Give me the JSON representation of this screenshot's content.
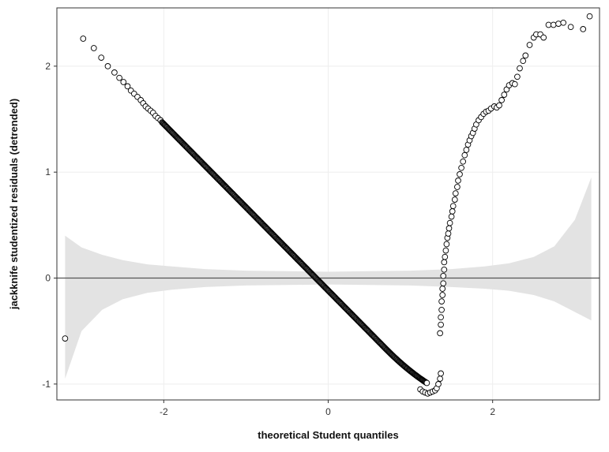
{
  "chart_data": {
    "type": "scatter",
    "title": "",
    "xlabel": "theoretical Student quantiles",
    "ylabel": "jackknife studentized residuals (detrended)",
    "xlim": [
      -3.3,
      3.3
    ],
    "ylim": [
      -1.15,
      2.55
    ],
    "x_ticks": [
      -2,
      0,
      2
    ],
    "y_ticks": [
      -1,
      0,
      1,
      2
    ],
    "x_tick_labels": [
      "-2",
      "0",
      "2"
    ],
    "y_tick_labels": [
      "-1",
      "0",
      "1",
      "2"
    ],
    "grid": true,
    "reference_line_y": 0,
    "colors": {
      "point_stroke": "#000000",
      "point_fill": "#ffffff",
      "band_fill": "#e3e3e3",
      "grid": "#eeeeee",
      "reference_line": "#555555"
    },
    "confidence_band": {
      "x": [
        -3.2,
        -3.0,
        -2.75,
        -2.5,
        -2.2,
        -1.9,
        -1.5,
        -1.0,
        -0.5,
        0.0,
        0.5,
        1.0,
        1.5,
        1.9,
        2.2,
        2.5,
        2.75,
        3.0,
        3.2
      ],
      "upper": [
        0.4,
        0.29,
        0.22,
        0.17,
        0.13,
        0.11,
        0.085,
        0.07,
        0.065,
        0.06,
        0.065,
        0.07,
        0.085,
        0.11,
        0.14,
        0.2,
        0.3,
        0.55,
        0.95
      ],
      "lower": [
        -0.95,
        -0.5,
        -0.3,
        -0.2,
        -0.14,
        -0.11,
        -0.085,
        -0.07,
        -0.065,
        -0.06,
        -0.065,
        -0.07,
        -0.085,
        -0.1,
        -0.12,
        -0.16,
        -0.22,
        -0.32,
        -0.4
      ]
    },
    "series": [
      {
        "outliers": [
          [
            -3.2,
            -0.57
          ],
          [
            -2.98,
            2.26
          ],
          [
            -2.85,
            2.17
          ],
          [
            -2.76,
            2.08
          ],
          [
            -2.68,
            2.0
          ],
          [
            -2.6,
            1.94
          ],
          [
            -2.54,
            1.89
          ],
          [
            -2.49,
            1.85
          ],
          [
            -2.44,
            1.81
          ],
          [
            -2.4,
            1.77
          ],
          [
            -2.36,
            1.74
          ],
          [
            -2.32,
            1.71
          ],
          [
            -2.28,
            1.68
          ],
          [
            -2.25,
            1.65
          ],
          [
            -2.22,
            1.62
          ],
          [
            -2.19,
            1.6
          ],
          [
            -2.16,
            1.58
          ],
          [
            -2.13,
            1.56
          ],
          [
            -2.1,
            1.53
          ],
          [
            -2.07,
            1.51
          ],
          [
            -2.04,
            1.49
          ]
        ],
        "main_trend": {
          "x_from": -2.02,
          "x_to": 1.2,
          "y_at_x_from": 1.47,
          "y_at_x_to": -1.06,
          "curve_start_x": 0.7
        },
        "lower_tail_points": [
          [
            1.12,
            -1.05
          ],
          [
            1.15,
            -1.07
          ],
          [
            1.18,
            -1.08
          ],
          [
            1.21,
            -1.09
          ],
          [
            1.24,
            -1.08
          ],
          [
            1.27,
            -1.07
          ],
          [
            1.3,
            -1.06
          ],
          [
            1.32,
            -1.04
          ],
          [
            1.34,
            -1.0
          ],
          [
            1.36,
            -0.95
          ],
          [
            1.37,
            -0.9
          ]
        ],
        "upper_tail_points": [
          [
            1.36,
            -0.52
          ],
          [
            1.37,
            -0.44
          ],
          [
            1.37,
            -0.37
          ],
          [
            1.38,
            -0.3
          ],
          [
            1.38,
            -0.22
          ],
          [
            1.39,
            -0.16
          ],
          [
            1.39,
            -0.1
          ],
          [
            1.4,
            -0.05
          ],
          [
            1.4,
            0.02
          ],
          [
            1.41,
            0.08
          ],
          [
            1.41,
            0.15
          ],
          [
            1.42,
            0.2
          ],
          [
            1.43,
            0.26
          ],
          [
            1.44,
            0.32
          ],
          [
            1.45,
            0.38
          ],
          [
            1.46,
            0.42
          ],
          [
            1.47,
            0.47
          ],
          [
            1.48,
            0.52
          ],
          [
            1.5,
            0.58
          ],
          [
            1.51,
            0.63
          ],
          [
            1.52,
            0.68
          ],
          [
            1.54,
            0.74
          ],
          [
            1.55,
            0.8
          ],
          [
            1.57,
            0.86
          ],
          [
            1.58,
            0.92
          ],
          [
            1.6,
            0.98
          ],
          [
            1.62,
            1.04
          ],
          [
            1.64,
            1.1
          ],
          [
            1.66,
            1.16
          ],
          [
            1.68,
            1.21
          ],
          [
            1.7,
            1.26
          ],
          [
            1.72,
            1.3
          ],
          [
            1.74,
            1.34
          ],
          [
            1.76,
            1.37
          ],
          [
            1.78,
            1.41
          ],
          [
            1.8,
            1.45
          ],
          [
            1.83,
            1.49
          ],
          [
            1.86,
            1.52
          ],
          [
            1.89,
            1.55
          ],
          [
            1.92,
            1.57
          ],
          [
            1.95,
            1.58
          ],
          [
            1.98,
            1.6
          ],
          [
            2.02,
            1.62
          ],
          [
            2.05,
            1.61
          ],
          [
            2.08,
            1.63
          ],
          [
            2.11,
            1.68
          ],
          [
            2.14,
            1.73
          ],
          [
            2.17,
            1.78
          ],
          [
            2.2,
            1.82
          ],
          [
            2.24,
            1.84
          ],
          [
            2.27,
            1.83
          ],
          [
            2.3,
            1.9
          ],
          [
            2.33,
            1.98
          ],
          [
            2.37,
            2.05
          ],
          [
            2.4,
            2.1
          ],
          [
            2.45,
            2.2
          ],
          [
            2.5,
            2.27
          ],
          [
            2.53,
            2.3
          ],
          [
            2.58,
            2.3
          ],
          [
            2.62,
            2.27
          ],
          [
            2.68,
            2.39
          ],
          [
            2.74,
            2.39
          ],
          [
            2.8,
            2.4
          ],
          [
            2.86,
            2.41
          ],
          [
            2.95,
            2.37
          ],
          [
            3.1,
            2.35
          ],
          [
            3.18,
            2.47
          ]
        ]
      }
    ]
  }
}
